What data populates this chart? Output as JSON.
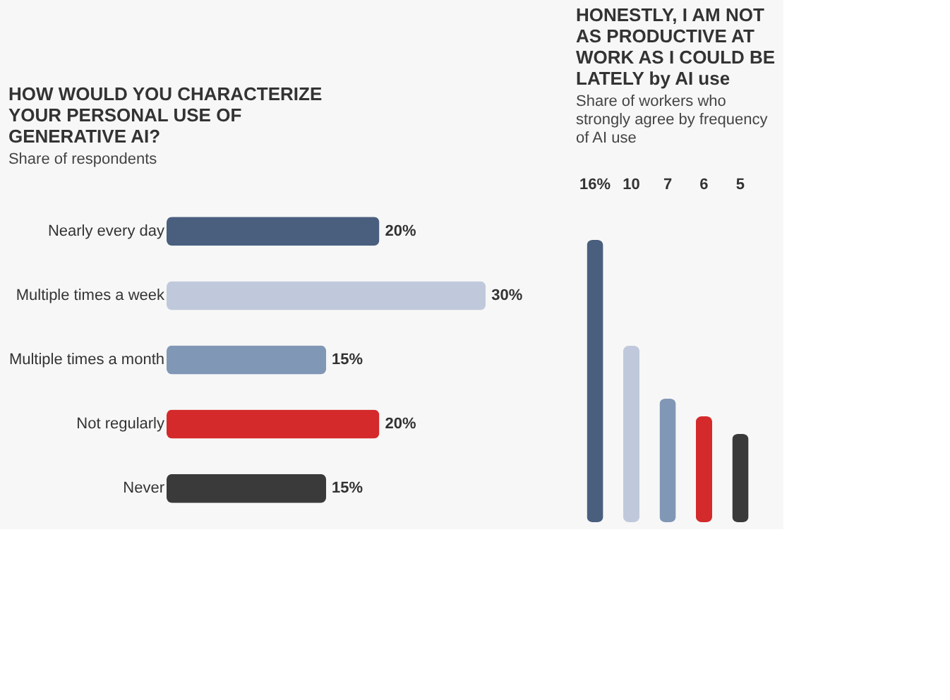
{
  "chart_data": [
    {
      "type": "bar",
      "orientation": "horizontal",
      "title": "HOW WOULD YOU CHARACTERIZE YOUR PERSONAL USE OF GENERATIVE AI?",
      "subtitle": "Share of respondents",
      "categories": [
        "Nearly every day",
        "Multiple times a week",
        "Multiple times a month",
        "Not regularly",
        "Never"
      ],
      "values": [
        20,
        30,
        15,
        20,
        15
      ],
      "colors": [
        "#4a5f7e",
        "#c0c9dc",
        "#8197b6",
        "#d42a2c",
        "#3a3a3a"
      ],
      "value_labels": [
        "20%",
        "30%",
        "15%",
        "20%",
        "15%"
      ]
    },
    {
      "type": "bar",
      "title": "HONESTLY, I AM NOT AS PRODUCTIVE AT WORK AS I COULD BE LATELY by AI use",
      "subtitle": "Share of workers who strongly agree by frequency of AI use",
      "categories": [
        null,
        null,
        null,
        null,
        null
      ],
      "values": [
        16,
        10,
        7,
        6,
        5
      ],
      "colors": [
        "#4a5f7e",
        "#c0c9dc",
        "#8197b6",
        "#d42a2c",
        "#3a3a3a"
      ],
      "value_labels": [
        "16%",
        "10",
        "7",
        "6",
        "5"
      ]
    }
  ]
}
